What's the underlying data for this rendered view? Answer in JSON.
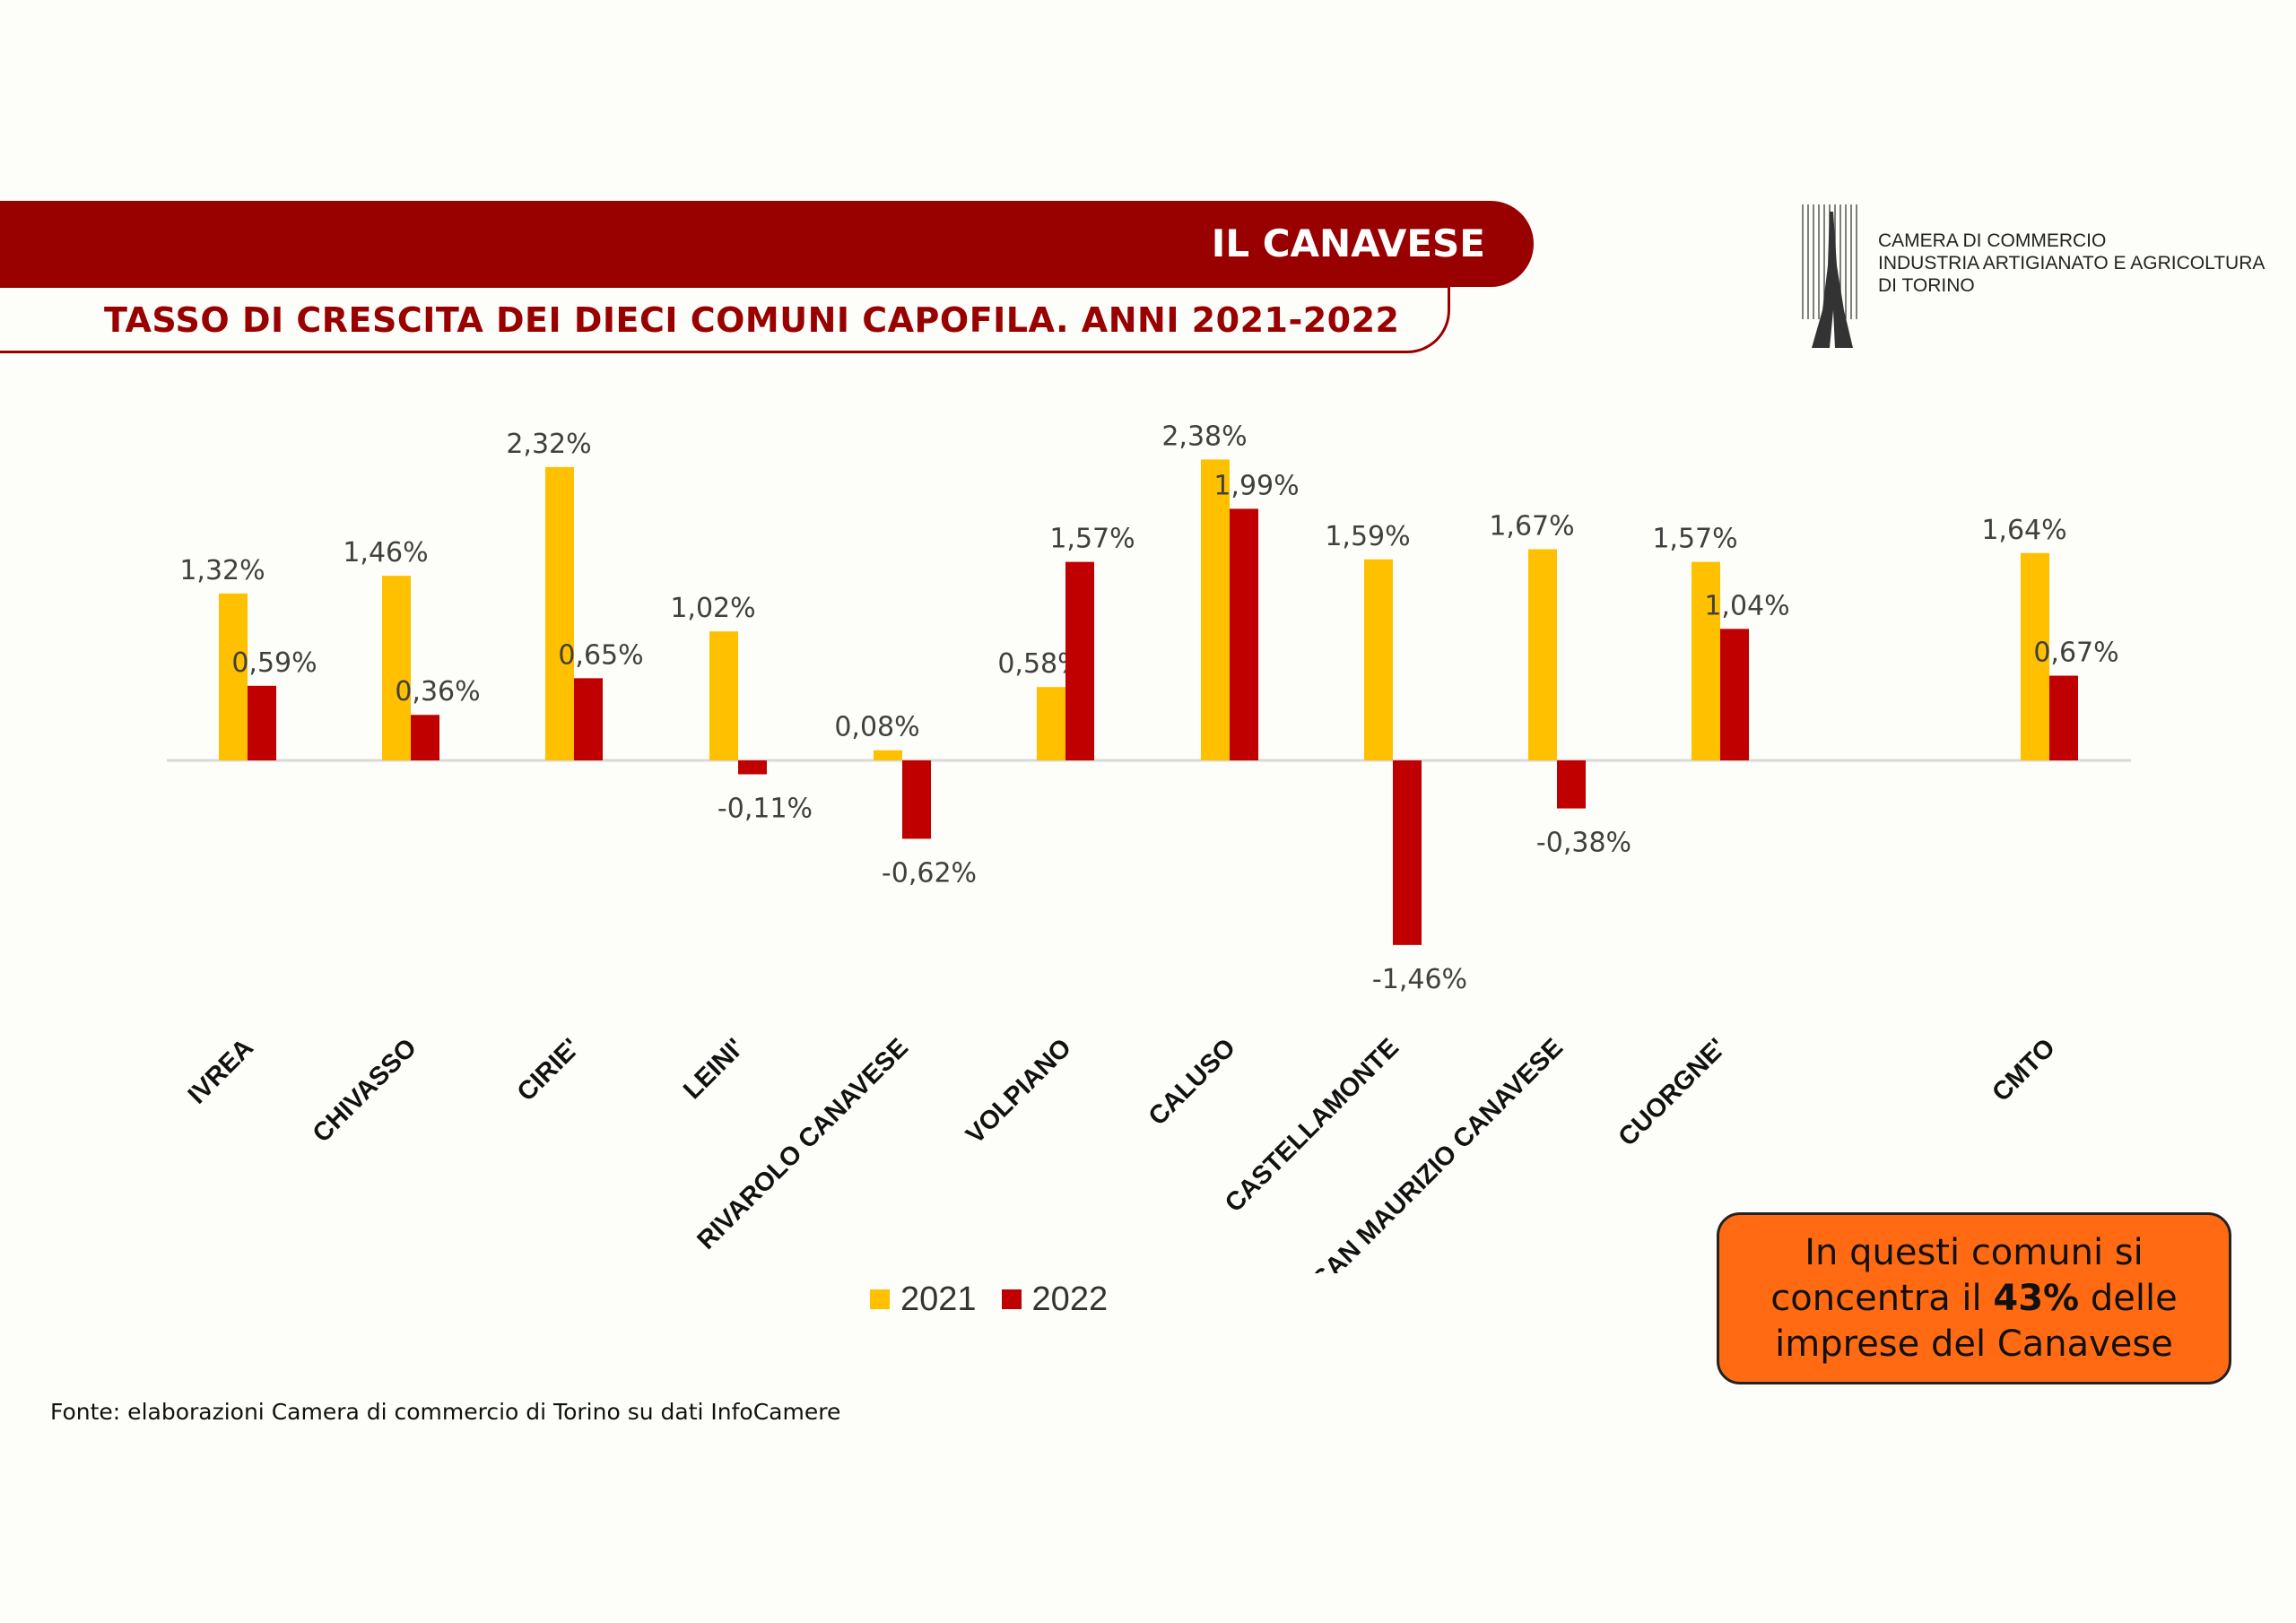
{
  "header": {
    "title": "IL CANAVESE",
    "subtitle": "TASSO DI CRESCITA DEI DIECI COMUNI CAPOFILA. ANNI 2021-2022"
  },
  "logo": {
    "line1": "CAMERA DI COMMERCIO",
    "line2": "INDUSTRIA ARTIGIANATO E AGRICOLTURA",
    "line3": "DI TORINO"
  },
  "colors": {
    "brand_red": "#990000",
    "series_2021": "#FFC000",
    "series_2022": "#C00000",
    "callout_bg": "#FF6A12"
  },
  "chart_data": {
    "type": "bar",
    "categories": [
      "IVREA",
      "CHIVASSO",
      "CIRIE'",
      "LEINI'",
      "RIVAROLO CANAVESE",
      "VOLPIANO",
      "CALUSO",
      "CASTELLAMONTE",
      "SAN MAURIZIO CANAVESE",
      "CUORGNE'",
      "CMTO"
    ],
    "series": [
      {
        "name": "2021",
        "values": [
          1.32,
          1.46,
          2.32,
          1.02,
          0.08,
          0.58,
          2.38,
          1.59,
          1.67,
          1.57,
          1.64
        ],
        "labels": [
          "1,32%",
          "1,46%",
          "2,32%",
          "1,02%",
          "0,08%",
          "0,58%",
          "2,38%",
          "1,59%",
          "1,67%",
          "1,57%",
          "1,64%"
        ]
      },
      {
        "name": "2022",
        "values": [
          0.59,
          0.36,
          0.65,
          -0.11,
          -0.62,
          1.57,
          1.99,
          -1.46,
          -0.38,
          1.04,
          0.67
        ],
        "labels": [
          "0,59%",
          "0,36%",
          "0,65%",
          "-0,11%",
          "-0,62%",
          "1,57%",
          "1,99%",
          "-1,46%",
          "-0,38%",
          "1,04%",
          "0,67%"
        ]
      }
    ],
    "title": "TASSO DI CRESCITA DEI DIECI COMUNI CAPOFILA. ANNI 2021-2022",
    "xlabel": "",
    "ylabel": "",
    "grid": false,
    "legend_position": "bottom"
  },
  "legend": {
    "label_2021": "2021",
    "label_2022": "2022"
  },
  "source": "Fonte: elaborazioni Camera di commercio di Torino su dati InfoCamere",
  "callout": {
    "part1": "In questi comuni si concentra il ",
    "highlight": "43%",
    "part2": " delle imprese del Canavese"
  }
}
